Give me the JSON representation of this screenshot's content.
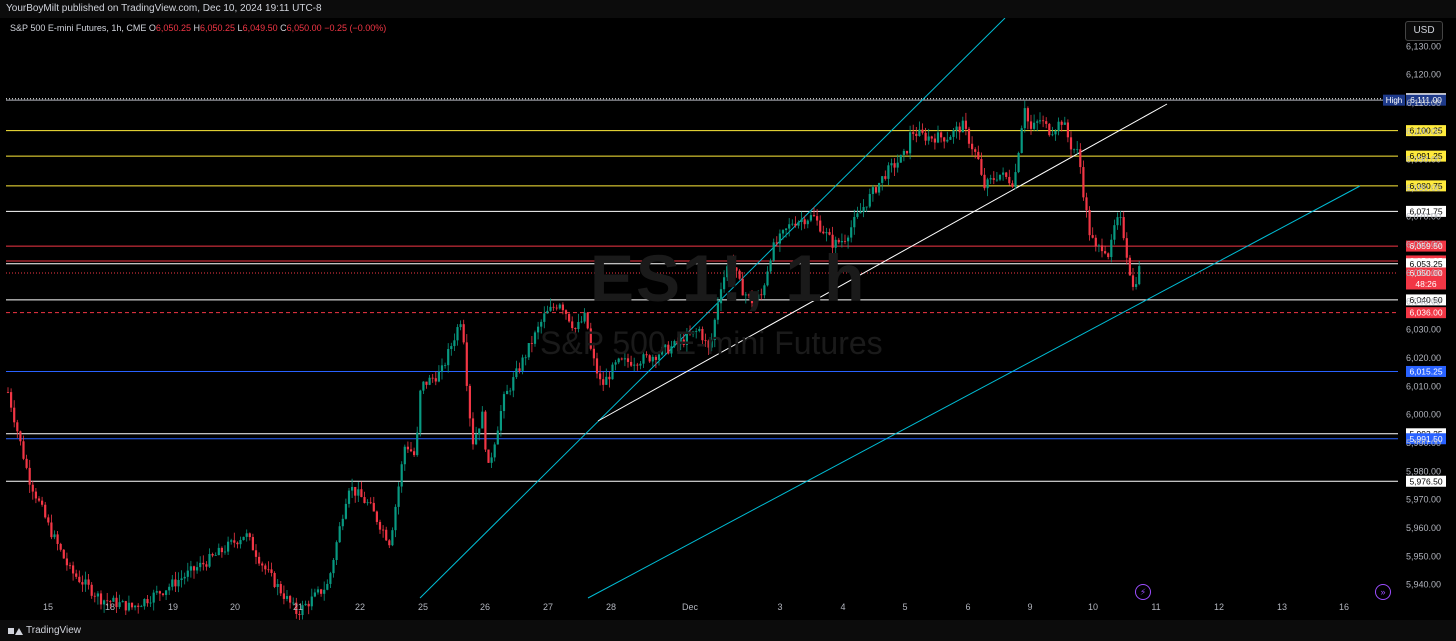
{
  "header": {
    "published": "YourBoyMilt published on TradingView.com, Dec 10, 2024 19:11 UTC-8"
  },
  "legend": {
    "symbol": "S&P 500 E-mini Futures, 1h, CME",
    "o_label": "O",
    "o_value": "6,050.25",
    "h_label": "H",
    "h_value": "6,050.25",
    "l_label": "L",
    "l_value": "6,049.50",
    "c_label": "C",
    "c_value": "6,050.00",
    "change": "−0.25 (−0.00%)"
  },
  "currency": "USD",
  "watermark": {
    "ticker": "ES1!, 1h",
    "name": "S&P 500 E-mini Futures"
  },
  "footer": {
    "brand": "TradingView"
  },
  "colors": {
    "up": "#089981",
    "down": "#f23645",
    "yellow": "#ffeb3b",
    "blue": "#2962ff",
    "cyan": "#00bcd4",
    "white": "#ffffff"
  },
  "chart_data": {
    "type": "candlestick",
    "ylim": [
      5936,
      6140
    ],
    "y_ticks": [
      "6,130.00",
      "6,120.00",
      "6,110.00",
      "6,100.00",
      "6,090.00",
      "6,080.00",
      "6,070.00",
      "6,060.00",
      "6,050.00",
      "6,040.00",
      "6,030.00",
      "6,020.00",
      "6,010.00",
      "6,000.00",
      "5,990.00",
      "5,980.00",
      "5,970.00",
      "5,960.00",
      "5,950.00",
      "5,940.00"
    ],
    "x_labels": [
      "15",
      "18",
      "19",
      "20",
      "21",
      "22",
      "25",
      "26",
      "27",
      "28",
      "Dec",
      "3",
      "4",
      "5",
      "6",
      "9",
      "10",
      "11",
      "12",
      "13",
      "16"
    ],
    "levels": [
      {
        "value": 6111.5,
        "label": "6,111.50",
        "color": "#ffffff",
        "style": "dotted"
      },
      {
        "value": 6111.0,
        "label": "6,111.00",
        "tag": "High",
        "color": "#b2b5be",
        "style": "solid"
      },
      {
        "value": 6100.25,
        "label": "6,100.25",
        "color": "#ffeb3b",
        "style": "solid"
      },
      {
        "value": 6091.25,
        "label": "6,091.25",
        "color": "#ffeb3b",
        "style": "solid"
      },
      {
        "value": 6080.75,
        "label": "6,080.75",
        "color": "#ffeb3b",
        "style": "solid"
      },
      {
        "value": 6071.75,
        "label": "6,071.75",
        "color": "#ffffff",
        "style": "solid"
      },
      {
        "value": 6059.5,
        "label": "6,059.50",
        "color": "#f23645",
        "style": "solid"
      },
      {
        "value": 6054.25,
        "label": "6,054.25",
        "color": "#f23645",
        "style": "solid"
      },
      {
        "value": 6053.25,
        "label": "6,053.25",
        "color": "#ffffff",
        "style": "solid"
      },
      {
        "value": 6050.0,
        "label": "6,050.00",
        "sub": "48:26",
        "color": "#f23645",
        "style": "dotted"
      },
      {
        "value": 6040.5,
        "label": "6,040.50",
        "color": "#ffffff",
        "style": "solid"
      },
      {
        "value": 6036.0,
        "label": "6,036.00",
        "color": "#f23645",
        "style": "dashed"
      },
      {
        "value": 6015.25,
        "label": "6,015.25",
        "color": "#2962ff",
        "style": "solid"
      },
      {
        "value": 5993.25,
        "label": "5,993.25",
        "color": "#ffffff",
        "style": "solid"
      },
      {
        "value": 5991.5,
        "label": "5,991.50",
        "color": "#2962ff",
        "style": "solid"
      },
      {
        "value": 5976.5,
        "label": "5,976.50",
        "color": "#ffffff",
        "style": "solid"
      }
    ],
    "trendlines": [
      {
        "color": "#00bcd4",
        "points": [
          [
            0.0,
            5938
          ],
          [
            1.0,
            6142
          ]
        ]
      },
      {
        "color": "#ffffff",
        "points": [
          [
            0.0,
            6003
          ],
          [
            1.0,
            6118
          ]
        ]
      },
      {
        "color": "#00bcd4",
        "points": [
          [
            0.0,
            5938
          ],
          [
            1.0,
            6090
          ]
        ]
      }
    ],
    "price_path": [
      [
        0.0,
        6008
      ],
      [
        0.02,
        5978
      ],
      [
        0.04,
        5960
      ],
      [
        0.06,
        5945
      ],
      [
        0.09,
        5935
      ],
      [
        0.12,
        5932
      ],
      [
        0.15,
        5938
      ],
      [
        0.2,
        5950
      ],
      [
        0.23,
        5958
      ],
      [
        0.25,
        5945
      ],
      [
        0.28,
        5930
      ],
      [
        0.31,
        5940
      ],
      [
        0.33,
        5975
      ],
      [
        0.35,
        5968
      ],
      [
        0.37,
        5955
      ],
      [
        0.385,
        5990
      ],
      [
        0.395,
        5985
      ],
      [
        0.4,
        6010
      ],
      [
        0.42,
        6015
      ],
      [
        0.44,
        6035
      ],
      [
        0.445,
        6010
      ],
      [
        0.45,
        5990
      ],
      [
        0.46,
        6000
      ],
      [
        0.465,
        5980
      ],
      [
        0.48,
        6005
      ],
      [
        0.5,
        6020
      ],
      [
        0.52,
        6035
      ],
      [
        0.535,
        6040
      ],
      [
        0.55,
        6030
      ],
      [
        0.56,
        6035
      ],
      [
        0.565,
        6022
      ],
      [
        0.575,
        6010
      ],
      [
        0.59,
        6018
      ],
      [
        0.62,
        6020
      ],
      [
        0.65,
        6025
      ],
      [
        0.67,
        6030
      ],
      [
        0.68,
        6022
      ],
      [
        0.69,
        6045
      ],
      [
        0.7,
        6055
      ],
      [
        0.71,
        6045
      ],
      [
        0.72,
        6040
      ],
      [
        0.73,
        6042
      ],
      [
        0.74,
        6058
      ],
      [
        0.76,
        6068
      ],
      [
        0.78,
        6070
      ],
      [
        0.8,
        6060
      ],
      [
        0.81,
        6062
      ],
      [
        0.83,
        6074
      ],
      [
        0.85,
        6085
      ],
      [
        0.87,
        6092
      ],
      [
        0.875,
        6100
      ],
      [
        0.89,
        6098
      ],
      [
        0.91,
        6098
      ],
      [
        0.925,
        6102
      ],
      [
        0.93,
        6098
      ],
      [
        0.94,
        6090
      ],
      [
        0.945,
        6080
      ],
      [
        0.96,
        6085
      ],
      [
        0.975,
        6082
      ],
      [
        0.985,
        6110
      ],
      [
        0.99,
        6100
      ],
      [
        1.0,
        6104
      ]
    ],
    "price_path2": [
      [
        0.0,
        6104
      ],
      [
        0.1,
        6100
      ],
      [
        0.22,
        6104
      ],
      [
        0.3,
        6095
      ],
      [
        0.38,
        6092
      ],
      [
        0.42,
        6080
      ],
      [
        0.48,
        6065
      ],
      [
        0.55,
        6058
      ],
      [
        0.62,
        6060
      ],
      [
        0.68,
        6056
      ],
      [
        0.74,
        6068
      ],
      [
        0.8,
        6068
      ],
      [
        0.86,
        6055
      ],
      [
        0.92,
        6043
      ],
      [
        0.96,
        6052
      ],
      [
        1.0,
        6050
      ]
    ]
  }
}
